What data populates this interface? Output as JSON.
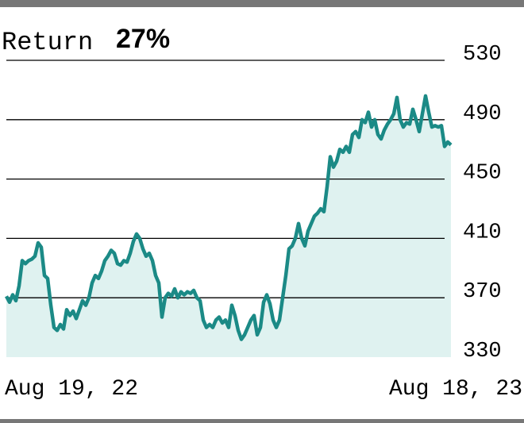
{
  "chart_data": {
    "type": "line",
    "title": "Return",
    "return_value": "27%",
    "categories": [
      "Aug 19, 22",
      null,
      null,
      null,
      null,
      null,
      null,
      null,
      null,
      null,
      null,
      null,
      null,
      null,
      null,
      null,
      null,
      null,
      null,
      null,
      null,
      null,
      null,
      null,
      null,
      null,
      null,
      null,
      null,
      null,
      null,
      null,
      null,
      null,
      null,
      null,
      null,
      null,
      null,
      null,
      null,
      null,
      null,
      null,
      null,
      null,
      null,
      null,
      null,
      null,
      null,
      null,
      null,
      null,
      null,
      null,
      null,
      null,
      null,
      null,
      null,
      null,
      null,
      null,
      null,
      null,
      null,
      null,
      null,
      null,
      null,
      null,
      null,
      null,
      null,
      null,
      null,
      null,
      null,
      null,
      null,
      null,
      null,
      null,
      null,
      null,
      null,
      null,
      null,
      null,
      null,
      null,
      null,
      null,
      null,
      null,
      null,
      null,
      null,
      null,
      null,
      null,
      null,
      null,
      null,
      null,
      null,
      null,
      null,
      null,
      null,
      null,
      null,
      null,
      null,
      null,
      null,
      null,
      null,
      null,
      null,
      null,
      null,
      null,
      null,
      null,
      null,
      null,
      null,
      null,
      null,
      null,
      null,
      null,
      null,
      null,
      null,
      null,
      null,
      null,
      "Aug 18, 23"
    ],
    "values": [
      371,
      367,
      372,
      368,
      378,
      395,
      393,
      395,
      396,
      398,
      407,
      404,
      385,
      383,
      365,
      350,
      348,
      352,
      349,
      362,
      358,
      361,
      356,
      362,
      368,
      365,
      370,
      380,
      385,
      383,
      388,
      395,
      398,
      402,
      400,
      393,
      392,
      395,
      394,
      400,
      408,
      413,
      410,
      403,
      398,
      400,
      395,
      385,
      380,
      357,
      370,
      373,
      371,
      376,
      370,
      374,
      372,
      374,
      373,
      375,
      370,
      368,
      355,
      350,
      352,
      350,
      355,
      357,
      353,
      355,
      350,
      365,
      358,
      348,
      342,
      345,
      350,
      355,
      358,
      345,
      350,
      367,
      372,
      366,
      355,
      350,
      355,
      370,
      385,
      403,
      405,
      410,
      420,
      410,
      405,
      415,
      420,
      425,
      427,
      430,
      428,
      445,
      465,
      458,
      462,
      470,
      468,
      472,
      468,
      480,
      482,
      478,
      490,
      488,
      495,
      485,
      490,
      480,
      477,
      483,
      487,
      490,
      494,
      505,
      490,
      485,
      488,
      487,
      497,
      490,
      482,
      494,
      506,
      495,
      485,
      486,
      485,
      486,
      472,
      475,
      473
    ],
    "color": "#1b8a86",
    "fill_color": "#dff2f0",
    "ylim": [
      330,
      530
    ],
    "yticks": [
      330,
      370,
      410,
      450,
      490,
      530
    ],
    "grid": true
  }
}
